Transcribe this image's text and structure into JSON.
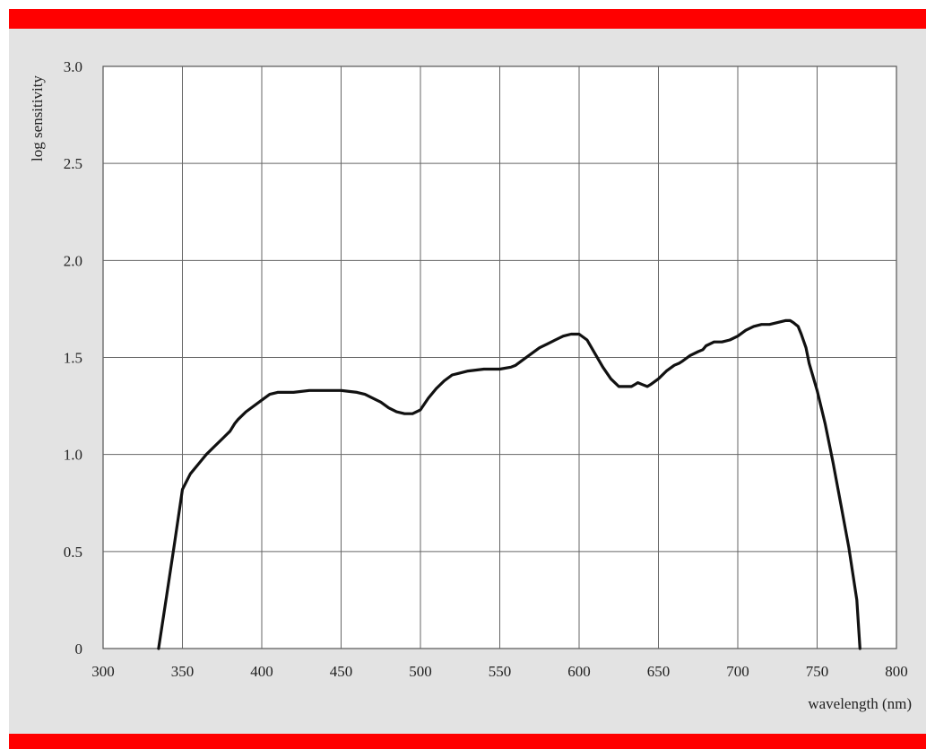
{
  "chart_data": {
    "type": "line",
    "xlabel": "wavelength (nm)",
    "ylabel": "log sensitivity",
    "xlim": [
      300,
      800
    ],
    "ylim": [
      0,
      3.0
    ],
    "x_ticks": [
      "300",
      "350",
      "400",
      "450",
      "500",
      "550",
      "600",
      "650",
      "700",
      "750",
      "800"
    ],
    "y_ticks": [
      "0",
      "0.5",
      "1.0",
      "1.5",
      "2.0",
      "2.5",
      "3.0"
    ],
    "grid": true,
    "series": [
      {
        "x": [
          335,
          340,
          345,
          350,
          355,
          360,
          365,
          370,
          375,
          380,
          383,
          385,
          390,
          395,
          400,
          405,
          410,
          415,
          420,
          430,
          440,
          450,
          460,
          465,
          470,
          475,
          480,
          485,
          490,
          495,
          500,
          505,
          510,
          515,
          520,
          525,
          530,
          540,
          550,
          557,
          560,
          565,
          570,
          575,
          580,
          585,
          590,
          595,
          600,
          605,
          610,
          615,
          620,
          625,
          630,
          633,
          635,
          637,
          640,
          643,
          645,
          650,
          655,
          660,
          663,
          665,
          670,
          675,
          678,
          680,
          685,
          690,
          695,
          700,
          705,
          710,
          715,
          720,
          725,
          730,
          733,
          735,
          738,
          740,
          743,
          745,
          750,
          755,
          760,
          765,
          770,
          775,
          777
        ],
        "y": [
          0.0,
          0.27,
          0.54,
          0.82,
          0.9,
          0.95,
          1.0,
          1.04,
          1.08,
          1.12,
          1.16,
          1.18,
          1.22,
          1.25,
          1.28,
          1.31,
          1.32,
          1.32,
          1.32,
          1.33,
          1.33,
          1.33,
          1.32,
          1.31,
          1.29,
          1.27,
          1.24,
          1.22,
          1.21,
          1.21,
          1.23,
          1.29,
          1.34,
          1.38,
          1.41,
          1.42,
          1.43,
          1.44,
          1.44,
          1.45,
          1.46,
          1.49,
          1.52,
          1.55,
          1.57,
          1.59,
          1.61,
          1.62,
          1.62,
          1.59,
          1.52,
          1.45,
          1.39,
          1.35,
          1.35,
          1.35,
          1.36,
          1.37,
          1.36,
          1.35,
          1.36,
          1.39,
          1.43,
          1.46,
          1.47,
          1.48,
          1.51,
          1.53,
          1.54,
          1.56,
          1.58,
          1.58,
          1.59,
          1.61,
          1.64,
          1.66,
          1.67,
          1.67,
          1.68,
          1.69,
          1.69,
          1.68,
          1.66,
          1.62,
          1.55,
          1.47,
          1.33,
          1.16,
          0.96,
          0.74,
          0.52,
          0.25,
          0.0
        ]
      }
    ]
  }
}
